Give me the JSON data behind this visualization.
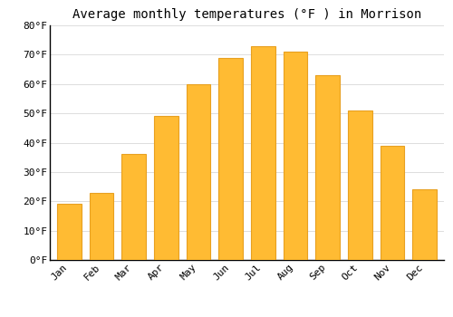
{
  "title": "Average monthly temperatures (°F ) in Morrison",
  "months": [
    "Jan",
    "Feb",
    "Mar",
    "Apr",
    "May",
    "Jun",
    "Jul",
    "Aug",
    "Sep",
    "Oct",
    "Nov",
    "Dec"
  ],
  "values": [
    19,
    23,
    36,
    49,
    60,
    69,
    73,
    71,
    63,
    51,
    39,
    24
  ],
  "bar_color": "#FFBB33",
  "bar_edge_color": "#E8A020",
  "background_color": "#FFFFFF",
  "grid_color": "#DDDDDD",
  "ylim": [
    0,
    80
  ],
  "yticks": [
    0,
    10,
    20,
    30,
    40,
    50,
    60,
    70,
    80
  ],
  "ytick_labels": [
    "0°F",
    "10°F",
    "20°F",
    "30°F",
    "40°F",
    "50°F",
    "60°F",
    "70°F",
    "80°F"
  ],
  "title_fontsize": 10,
  "tick_fontsize": 8,
  "font_family": "monospace",
  "bar_width": 0.75
}
